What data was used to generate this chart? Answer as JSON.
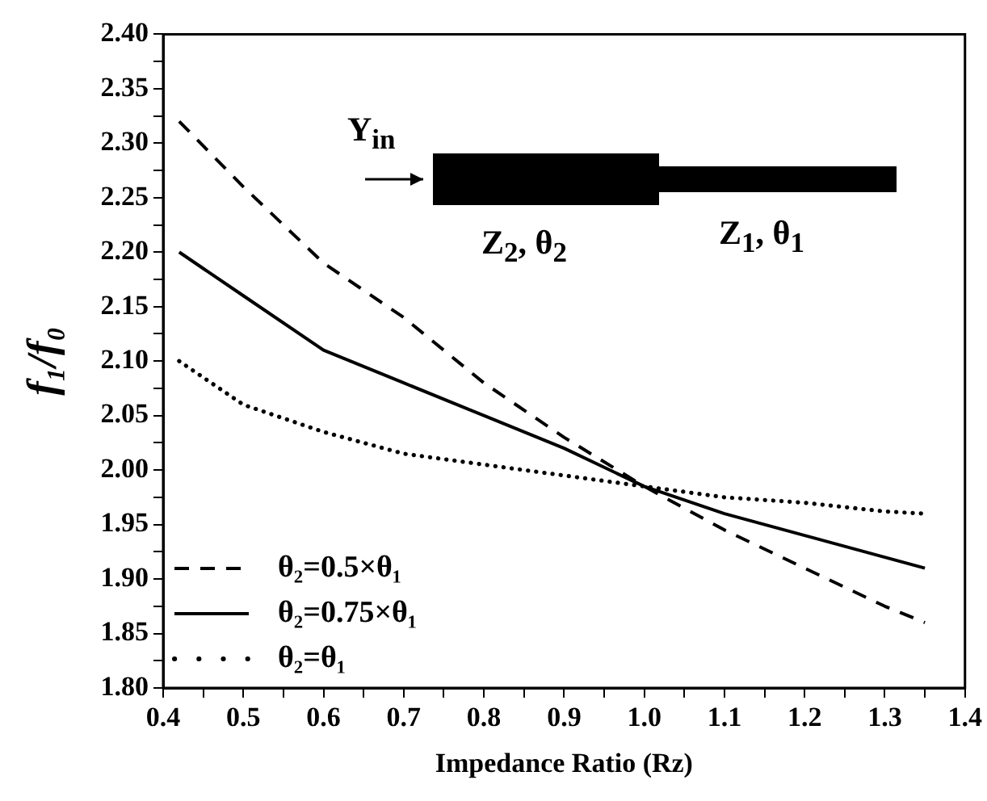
{
  "chart_data": {
    "type": "line",
    "xlabel": "Impedance Ratio (Rz)",
    "ylabel": "f₁/f₀",
    "x": [
      0.42,
      0.5,
      0.6,
      0.7,
      0.8,
      0.9,
      1.0,
      1.1,
      1.2,
      1.3,
      1.35
    ],
    "series": [
      {
        "name": "θ₂=0.5×θ₁",
        "color": "#000000",
        "line_style": "dashed",
        "values": [
          2.32,
          2.26,
          2.19,
          2.14,
          2.08,
          2.03,
          1.985,
          1.945,
          1.91,
          1.875,
          1.86
        ]
      },
      {
        "name": "θ₂=0.75×θ₁",
        "color": "#000000",
        "line_style": "solid",
        "values": [
          2.2,
          2.16,
          2.11,
          2.08,
          2.05,
          2.02,
          1.985,
          1.96,
          1.94,
          1.92,
          1.91
        ]
      },
      {
        "name": "θ₂=θ₁",
        "color": "#000000",
        "line_style": "dotted",
        "values": [
          2.1,
          2.06,
          2.035,
          2.015,
          2.005,
          1.995,
          1.985,
          1.975,
          1.97,
          1.962,
          1.96
        ]
      }
    ],
    "xlim": [
      0.4,
      1.4
    ],
    "xticks": [
      {
        "value": 0.4,
        "label": "0.4"
      },
      {
        "value": 0.45,
        "label": null
      },
      {
        "value": 0.5,
        "label": "0.5"
      },
      {
        "value": 0.55,
        "label": null
      },
      {
        "value": 0.6,
        "label": "0.6"
      },
      {
        "value": 0.65,
        "label": null
      },
      {
        "value": 0.7,
        "label": "0.7"
      },
      {
        "value": 0.75,
        "label": null
      },
      {
        "value": 0.8,
        "label": "0.8"
      },
      {
        "value": 0.85,
        "label": null
      },
      {
        "value": 0.9,
        "label": "0.9"
      },
      {
        "value": 0.95,
        "label": null
      },
      {
        "value": 1.0,
        "label": "1.0"
      },
      {
        "value": 1.05,
        "label": null
      },
      {
        "value": 1.1,
        "label": "1.1"
      },
      {
        "value": 1.15,
        "label": null
      },
      {
        "value": 1.2,
        "label": "1.2"
      },
      {
        "value": 1.25,
        "label": null
      },
      {
        "value": 1.3,
        "label": "1.3"
      },
      {
        "value": 1.35,
        "label": null
      },
      {
        "value": 1.4,
        "label": "1.4"
      }
    ],
    "ylim": [
      1.8,
      2.4
    ],
    "yticks": [
      {
        "value": 1.8,
        "label": "1.80"
      },
      {
        "value": 1.825,
        "label": null
      },
      {
        "value": 1.85,
        "label": "1.85"
      },
      {
        "value": 1.875,
        "label": null
      },
      {
        "value": 1.9,
        "label": "1.90"
      },
      {
        "value": 1.925,
        "label": null
      },
      {
        "value": 1.95,
        "label": "1.95"
      },
      {
        "value": 1.975,
        "label": null
      },
      {
        "value": 2.0,
        "label": "2.00"
      },
      {
        "value": 2.025,
        "label": null
      },
      {
        "value": 2.05,
        "label": "2.05"
      },
      {
        "value": 2.075,
        "label": null
      },
      {
        "value": 2.1,
        "label": "2.10"
      },
      {
        "value": 2.125,
        "label": null
      },
      {
        "value": 2.15,
        "label": "2.15"
      },
      {
        "value": 2.175,
        "label": null
      },
      {
        "value": 2.2,
        "label": "2.20"
      },
      {
        "value": 2.225,
        "label": null
      },
      {
        "value": 2.25,
        "label": "2.25"
      },
      {
        "value": 2.275,
        "label": null
      },
      {
        "value": 2.3,
        "label": "2.30"
      },
      {
        "value": 2.325,
        "label": null
      },
      {
        "value": 2.35,
        "label": "2.35"
      },
      {
        "value": 2.375,
        "label": null
      },
      {
        "value": 2.4,
        "label": "2.40"
      }
    ],
    "annotations": [
      "Y$_{in}$",
      "Z$_{2}$, θ$_{2}$",
      "Z$_{1}$, θ$_{1}$"
    ],
    "legend": "bottom left",
    "grid": false,
    "marker": "none"
  }
}
